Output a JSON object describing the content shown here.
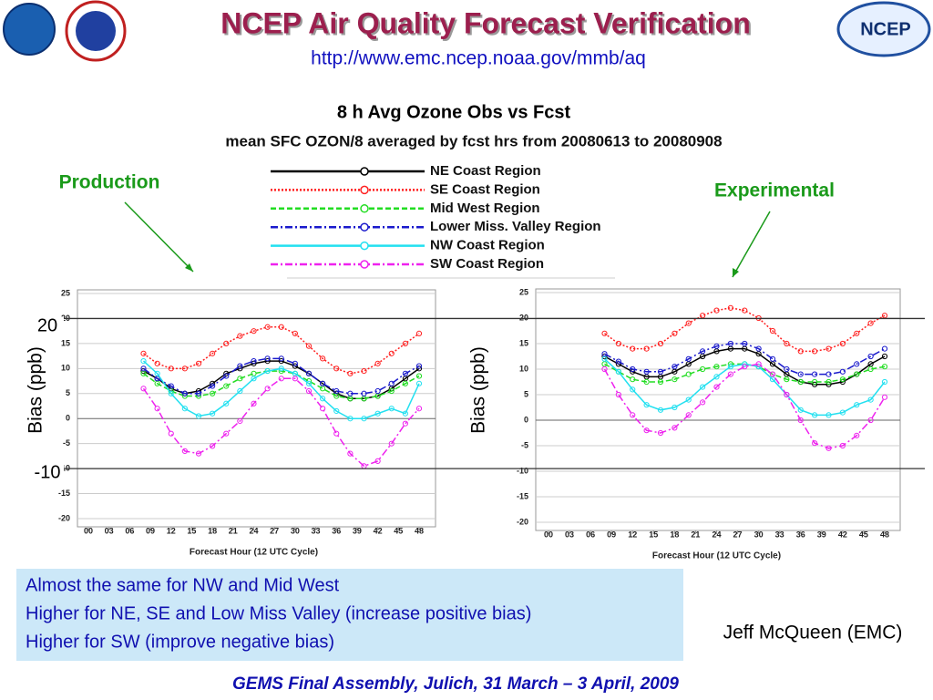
{
  "header": {
    "title": "NCEP Air Quality Forecast Verification",
    "url": "http://www.emc.ncep.noaa.gov/mmb/aq",
    "logo": "NCEP"
  },
  "figure": {
    "title": "8 h Avg Ozone Obs vs Fcst",
    "subtitle": "mean SFC OZON/8 averaged by fcst hrs from 20080613 to 20080908"
  },
  "labels": {
    "production": "Production",
    "experimental": "Experimental",
    "mark_high": "20",
    "mark_low": "-10",
    "author": "Jeff McQueen (EMC)",
    "footer": "GEMS Final Assembly, Julich, 31 March – 3 April, 2009"
  },
  "notes": [
    "Almost the same for NW and Mid West",
    "Higher for NE, SE and Low Miss Valley (increase positive bias)",
    "Higher for SW (improve negative bias)"
  ],
  "chart_data": [
    {
      "type": "line",
      "xlabel": "Forecast Hour (12 UTC Cycle)",
      "ylabel": "Bias (ppb)",
      "x": [
        8,
        10,
        12,
        14,
        16,
        18,
        20,
        22,
        24,
        26,
        28,
        30,
        32,
        34,
        36,
        38,
        40,
        42,
        44,
        46,
        48
      ],
      "xlim": [
        0,
        48
      ],
      "xticks": [
        {
          "value": 0,
          "label": "00"
        },
        {
          "value": 3,
          "label": "03"
        },
        {
          "value": 6,
          "label": "06"
        },
        {
          "value": 9,
          "label": "09"
        },
        12,
        15,
        18,
        21,
        24,
        27,
        30,
        33,
        36,
        39,
        42,
        45,
        48
      ],
      "ylim": [
        -20,
        25
      ],
      "yticks": [
        -20,
        -15,
        -10,
        -5,
        0,
        5,
        10,
        15,
        20,
        25
      ],
      "series": [
        {
          "name": "NE Coast Region",
          "color": "#000000",
          "dash": "none",
          "values": [
            9.5,
            8,
            6,
            5,
            5.5,
            7,
            9,
            10,
            11,
            11.5,
            11.5,
            10.5,
            9,
            7,
            5,
            4,
            4,
            4.5,
            6,
            8,
            10
          ]
        },
        {
          "name": "SE Coast Region",
          "color": "#ff2020",
          "dash": "2 2",
          "values": [
            13,
            11,
            10,
            10,
            11,
            13,
            15,
            16.5,
            17.5,
            18.3,
            18.3,
            17,
            14.5,
            12,
            10,
            9,
            9.5,
            11,
            13,
            15,
            17
          ]
        },
        {
          "name": "Mid West Region",
          "color": "#22dd22",
          "dash": "6 3",
          "values": [
            9,
            7,
            5.5,
            4.5,
            4.5,
            5,
            6.5,
            8,
            9,
            9.5,
            9.5,
            9,
            7.5,
            6,
            4.5,
            4,
            4,
            4.5,
            5.5,
            7,
            8.5
          ]
        },
        {
          "name": "Lower Miss. Valley Region",
          "color": "#1a1acc",
          "dash": "8 3 2 3",
          "values": [
            10,
            8,
            6.5,
            5,
            5,
            6.5,
            8.5,
            10.5,
            11.5,
            12,
            12,
            11,
            9,
            7,
            5.5,
            5,
            5,
            5.5,
            7,
            9,
            10.5
          ]
        },
        {
          "name": "NW Coast Region",
          "color": "#22e0f0",
          "dash": "none",
          "values": [
            11.5,
            9,
            5,
            2,
            0.5,
            1,
            3,
            5.5,
            8,
            9.5,
            10,
            9,
            7,
            4,
            1.5,
            0,
            0,
            1,
            2,
            1,
            7
          ]
        },
        {
          "name": "SW Coast Region",
          "color": "#ee22ee",
          "dash": "8 3 2 3",
          "values": [
            6,
            2,
            -3,
            -6.5,
            -7,
            -5.5,
            -3,
            -0.5,
            3,
            6,
            8,
            8,
            5.5,
            2,
            -3,
            -7,
            -9.5,
            -8.5,
            -5,
            -1,
            2
          ]
        }
      ]
    },
    {
      "type": "line",
      "xlabel": "Forecast Hour (12 UTC Cycle)",
      "ylabel": "Bias (ppb)",
      "x": [
        8,
        10,
        12,
        14,
        16,
        18,
        20,
        22,
        24,
        26,
        28,
        30,
        32,
        34,
        36,
        38,
        40,
        42,
        44,
        46,
        48
      ],
      "xlim": [
        0,
        48
      ],
      "xticks": [
        {
          "value": 0,
          "label": "00"
        },
        {
          "value": 3,
          "label": "03"
        },
        {
          "value": 6,
          "label": "06"
        },
        {
          "value": 9,
          "label": "09"
        },
        12,
        15,
        18,
        21,
        24,
        27,
        30,
        33,
        36,
        39,
        42,
        45,
        48
      ],
      "ylim": [
        -20,
        25
      ],
      "yticks": [
        -20,
        -15,
        -10,
        -5,
        0,
        5,
        10,
        15,
        20,
        25
      ],
      "series": [
        {
          "color": "#000000",
          "dash": "none",
          "values": [
            12.5,
            11,
            9.5,
            8.5,
            8.5,
            9.5,
            11,
            12.5,
            13.5,
            14,
            14,
            13,
            11,
            9,
            7.5,
            7,
            7,
            7.5,
            9,
            11,
            12.5
          ]
        },
        {
          "color": "#ff2020",
          "dash": "2 2",
          "values": [
            17,
            15,
            14,
            14,
            15,
            17,
            19,
            20.5,
            21.5,
            22,
            21.5,
            20,
            17.5,
            15,
            13.5,
            13.5,
            14,
            15,
            17,
            19,
            20.5
          ]
        },
        {
          "color": "#22dd22",
          "dash": "6 3",
          "values": [
            11,
            9.5,
            8,
            7.5,
            7.5,
            8,
            9,
            10,
            10.5,
            11,
            11,
            10.5,
            9,
            8,
            7.5,
            7.5,
            7.5,
            8,
            9,
            10,
            10.5
          ]
        },
        {
          "color": "#1a1acc",
          "dash": "8 3 2 3",
          "values": [
            13,
            11.5,
            10,
            9.5,
            9.5,
            10.5,
            12,
            13.5,
            14.5,
            15,
            15,
            14,
            12,
            10,
            9,
            9,
            9,
            9.5,
            11,
            12.5,
            14
          ]
        },
        {
          "color": "#22e0f0",
          "dash": "none",
          "values": [
            12,
            9.5,
            6,
            3,
            2,
            2.5,
            4,
            6.5,
            8.5,
            10.5,
            11,
            10.5,
            8,
            5,
            2,
            1,
            1,
            1.5,
            3,
            4,
            7.5
          ]
        },
        {
          "color": "#ee22ee",
          "dash": "8 3 2 3",
          "values": [
            10,
            5,
            1,
            -2,
            -2.5,
            -1.5,
            1,
            3.5,
            6.5,
            9,
            10.5,
            11,
            9,
            5,
            0,
            -4.5,
            -5.5,
            -5,
            -3,
            0,
            4.5
          ]
        }
      ]
    }
  ]
}
